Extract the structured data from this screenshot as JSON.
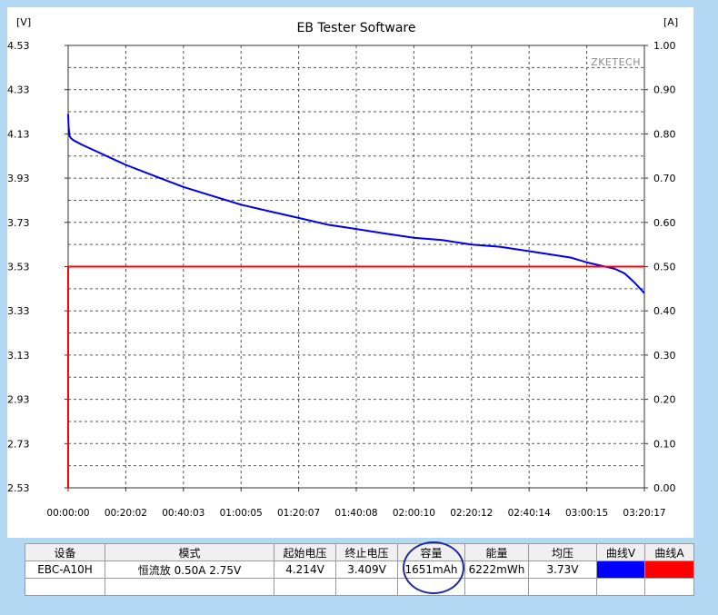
{
  "chart_data": {
    "type": "line",
    "title": "EB Tester Software",
    "watermark": "ZKETECH",
    "y_left": {
      "unit_label": "[V]",
      "range": [
        2.53,
        4.53
      ],
      "ticks": [
        "2.53",
        "2.73",
        "2.93",
        "3.13",
        "3.33",
        "3.53",
        "3.73",
        "3.93",
        "4.13",
        "4.33",
        "4.53"
      ]
    },
    "y_right": {
      "unit_label": "[A]",
      "range": [
        0.0,
        1.0
      ],
      "ticks": [
        "0.00",
        "0.10",
        "0.20",
        "0.30",
        "0.40",
        "0.50",
        "0.60",
        "0.70",
        "0.80",
        "0.90",
        "1.00"
      ]
    },
    "x_ticks": [
      "00:00:00",
      "00:20:02",
      "00:40:03",
      "01:00:05",
      "01:20:07",
      "01:40:08",
      "02:00:10",
      "02:20:12",
      "02:40:14",
      "03:00:15",
      "03:20:17"
    ],
    "x_range_seconds": [
      0,
      12017
    ],
    "grid": true,
    "series": [
      {
        "axis": "left",
        "color": "#0000ee",
        "x_seconds": [
          0,
          10,
          30,
          60,
          120,
          300,
          600,
          900,
          1202,
          1800,
          2403,
          3000,
          3605,
          4200,
          4807,
          5400,
          6008,
          6600,
          7210,
          7800,
          8412,
          9000,
          9614,
          10200,
          10500,
          10800,
          11000,
          11200,
          11400,
          11600,
          11800,
          12017
        ],
        "values": [
          4.22,
          4.16,
          4.12,
          4.11,
          4.1,
          4.08,
          4.05,
          4.02,
          3.99,
          3.94,
          3.89,
          3.85,
          3.81,
          3.78,
          3.75,
          3.72,
          3.7,
          3.68,
          3.66,
          3.65,
          3.63,
          3.62,
          3.6,
          3.58,
          3.57,
          3.55,
          3.54,
          3.53,
          3.52,
          3.5,
          3.46,
          3.41
        ]
      },
      {
        "axis": "right",
        "color": "#ff0000",
        "x_seconds": [
          0,
          0,
          12017
        ],
        "values": [
          0.0,
          0.5,
          0.5
        ]
      }
    ]
  },
  "table": {
    "headers": [
      "设备",
      "模式",
      "起始电压",
      "终止电压",
      "容量",
      "能量",
      "均压",
      "曲线V",
      "曲线A"
    ],
    "row": {
      "device": "EBC-A10H",
      "mode": "恒流放  0.50A  2.75V",
      "start_voltage": "4.214V",
      "end_voltage": "3.409V",
      "capacity": "1651mAh",
      "energy": "6222mWh",
      "avg_voltage": "3.73V"
    },
    "curve_v_color": "#0000ff",
    "curve_a_color": "#ff0000"
  }
}
